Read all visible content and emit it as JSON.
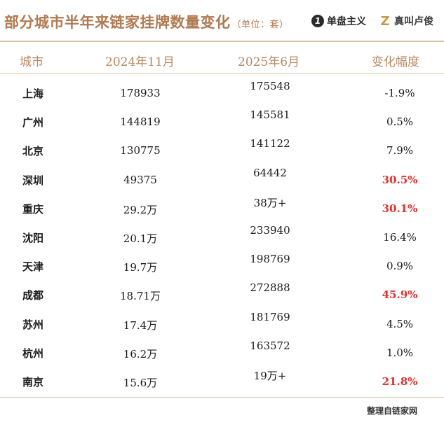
{
  "header": {
    "title": "部分城市半年来链家挂牌数量变化",
    "unit": "（单位：套）",
    "brand1_mark": "1",
    "brand1_name": "单盘主义",
    "brand2_mark": "Z",
    "brand2_name": "真叫卢俊"
  },
  "table": {
    "columns": [
      "城市",
      "2024年11月",
      "2025年6月",
      "变化幅度"
    ],
    "rows": [
      {
        "city": "上海",
        "nov2024": "178933",
        "jun2025": "175548",
        "change": "-1.9%",
        "highlight": false
      },
      {
        "city": "广州",
        "nov2024": "144819",
        "jun2025": "145581",
        "change": "0.5%",
        "highlight": false
      },
      {
        "city": "北京",
        "nov2024": "130775",
        "jun2025": "141122",
        "change": "7.9%",
        "highlight": false
      },
      {
        "city": "深圳",
        "nov2024": "49375",
        "jun2025": "64442",
        "change": "30.5%",
        "highlight": true
      },
      {
        "city": "重庆",
        "nov2024": "29.2万",
        "jun2025": "38万+",
        "change": "30.1%",
        "highlight": true
      },
      {
        "city": "沈阳",
        "nov2024": "20.1万",
        "jun2025": "233940",
        "change": "16.4%",
        "highlight": false
      },
      {
        "city": "天津",
        "nov2024": "19.7万",
        "jun2025": "198769",
        "change": "0.9%",
        "highlight": false
      },
      {
        "city": "成都",
        "nov2024": "18.71万",
        "jun2025": "272888",
        "change": "45.9%",
        "highlight": true
      },
      {
        "city": "苏州",
        "nov2024": "17.4万",
        "jun2025": "181769",
        "change": "4.5%",
        "highlight": false
      },
      {
        "city": "杭州",
        "nov2024": "16.2万",
        "jun2025": "163572",
        "change": "1.0%",
        "highlight": false
      },
      {
        "city": "南京",
        "nov2024": "15.6万",
        "jun2025": "19万+",
        "change": "21.8%",
        "highlight": true
      }
    ]
  },
  "footer": {
    "source": "整理自链家网"
  },
  "colors": {
    "title": "#b07a52",
    "header_text": "#b78a63",
    "rule": "#d9c3a6",
    "highlight": "#e0302a"
  }
}
